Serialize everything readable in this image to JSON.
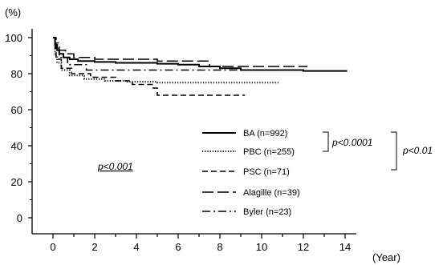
{
  "chart_data": {
    "type": "line",
    "ylabel": "(%)",
    "xlabel": "(Year)",
    "xlim": [
      0,
      14
    ],
    "ylim": [
      0,
      100
    ],
    "xticks": [
      0,
      2,
      4,
      6,
      8,
      10,
      12,
      14
    ],
    "yticks": [
      0,
      20,
      40,
      60,
      80,
      100
    ],
    "grid": false,
    "legend_position": "right",
    "series": [
      {
        "name": "BA (n=992)",
        "style": "solid",
        "x": [
          0,
          0.1,
          0.2,
          0.3,
          0.5,
          0.8,
          1.2,
          2,
          3,
          5,
          6,
          7,
          8,
          9,
          10,
          12,
          14.1
        ],
        "y": [
          100,
          96,
          93,
          91,
          89,
          88,
          87,
          86.5,
          86,
          85.5,
          85,
          84,
          83,
          82,
          82,
          81.5,
          81.5
        ]
      },
      {
        "name": "PBC (n=255)",
        "style": "dotted",
        "x": [
          0,
          0.1,
          0.2,
          0.4,
          0.8,
          1.5,
          2.5,
          3.5,
          5,
          7,
          9,
          10.8
        ],
        "y": [
          100,
          90,
          86,
          82,
          79,
          77,
          76,
          75.5,
          75,
          75,
          75,
          75
        ]
      },
      {
        "name": "PSC (n=71)",
        "style": "short-dash",
        "x": [
          0,
          0.15,
          0.4,
          0.9,
          1.8,
          3,
          3.8,
          4.8,
          5,
          6,
          7,
          9.2
        ],
        "y": [
          100,
          88,
          83,
          80,
          78,
          76,
          74,
          72,
          68,
          68,
          68,
          68
        ]
      },
      {
        "name": "Alagille (n=39)",
        "style": "long-dash",
        "x": [
          0,
          0.1,
          0.3,
          0.6,
          1,
          2,
          3,
          5,
          6,
          7.5,
          9,
          10,
          11,
          12.2
        ],
        "y": [
          100,
          97,
          93,
          91,
          89,
          88,
          88,
          87,
          87,
          84,
          84,
          84,
          84,
          84
        ]
      },
      {
        "name": "Byler (n=23)",
        "style": "dash-dot",
        "x": [
          0,
          0.1,
          0.3,
          0.7,
          1.6,
          3,
          5,
          7,
          9,
          10.8
        ],
        "y": [
          100,
          94,
          89,
          85,
          82,
          82,
          82,
          82,
          82,
          82
        ]
      }
    ],
    "annotations": {
      "overall_p": "p<0.001",
      "bracket_inner_p": "p<0.0001",
      "bracket_outer_p": "p<0.01"
    }
  }
}
